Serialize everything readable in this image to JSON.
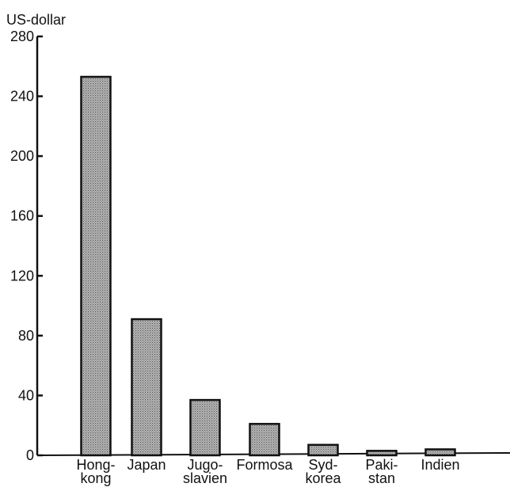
{
  "chart_data": {
    "type": "bar",
    "ylabel": "US-dollar",
    "ylim": [
      0,
      280
    ],
    "yticks": [
      "0",
      "40",
      "80",
      "120",
      "160",
      "200",
      "240",
      "280"
    ],
    "grid": false,
    "categories": [
      [
        "Hong-",
        "kong"
      ],
      [
        "Japan"
      ],
      [
        "Jugo-",
        "slavien"
      ],
      [
        "Formosa"
      ],
      [
        "Syd-",
        "korea"
      ],
      [
        "Paki-",
        "stan"
      ],
      [
        "Indien"
      ]
    ],
    "values": [
      253,
      91,
      37,
      21,
      7,
      3,
      4
    ],
    "colors": {
      "bar_fill": "#b9b9b9",
      "bar_dots": "#555555",
      "stroke": "#111111"
    }
  }
}
